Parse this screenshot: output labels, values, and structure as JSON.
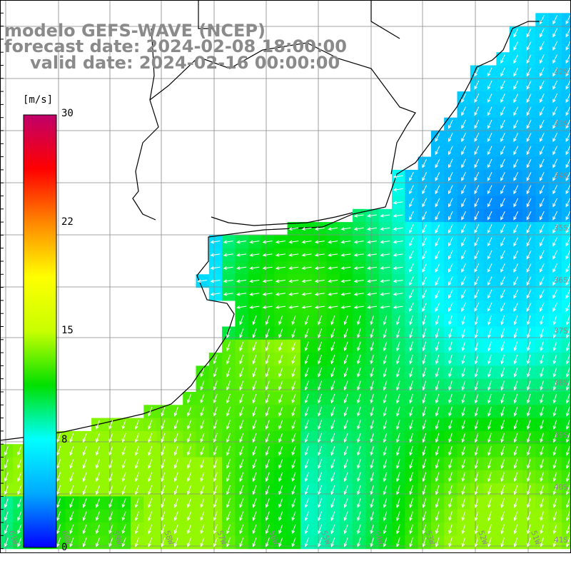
{
  "title": {
    "model": "modelo GEFS-WAVE (NCEP)",
    "forecast": "forecast date: 2024-02-08 18:00:00",
    "valid": "valid date: 2024-02-16 00:00:00"
  },
  "colorbar": {
    "unit": "[m/s]",
    "ticks": [
      "30",
      "22",
      "15",
      "8",
      "0"
    ],
    "stops": [
      "#0000ff",
      "#00aaff",
      "#00ffff",
      "#00e000",
      "#c8ff00",
      "#ffff00",
      "#ff8800",
      "#ff0000",
      "#c0006a"
    ]
  },
  "map": {
    "lat_labels": [
      "32S",
      "33S",
      "34S",
      "35S",
      "36S",
      "37S",
      "38S",
      "39S",
      "40S",
      "41S"
    ],
    "lon_labels": [
      "61W",
      "60W",
      "59W",
      "58W",
      "57W",
      "56W",
      "55W",
      "54W",
      "53W",
      "52W",
      "51W"
    ],
    "land_color": "#ffffff",
    "grid_color": "#888888",
    "coast_color": "#000000",
    "arrow_color": "#ffffff"
  }
}
